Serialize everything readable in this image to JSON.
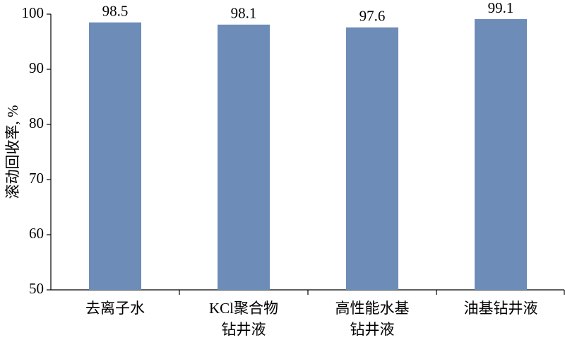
{
  "chart_data": {
    "type": "bar",
    "y_label": "滚动回收率, %",
    "categories": [
      [
        "去离子水"
      ],
      [
        "KCl聚合物",
        "钻井液"
      ],
      [
        "高性能水基",
        "钻井液"
      ],
      [
        "油基钻井液"
      ]
    ],
    "values": [
      98.5,
      98.1,
      97.6,
      99.1
    ],
    "color": "#6e8cb8",
    "ylim": [
      50,
      100
    ],
    "yticks": [
      50,
      60,
      70,
      80,
      90,
      100
    ],
    "grid": false
  }
}
